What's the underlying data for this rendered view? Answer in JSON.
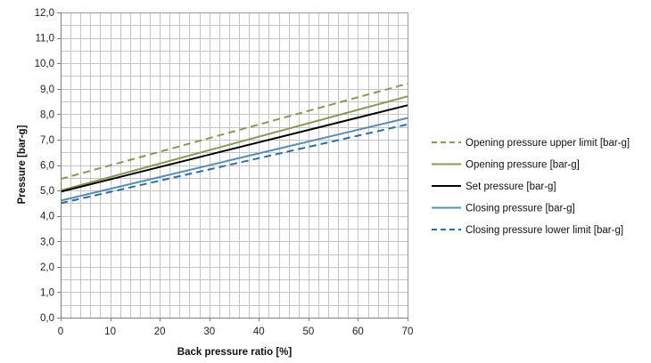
{
  "chart_data": {
    "type": "line",
    "xlabel": "Back pressure ratio [%]",
    "ylabel": "Pressure [bar-g]",
    "xlim": [
      0,
      70
    ],
    "ylim": [
      0,
      12
    ],
    "x_ticks": [
      "0",
      "10",
      "20",
      "30",
      "40",
      "50",
      "60",
      "70"
    ],
    "y_ticks": [
      "0,0",
      "1,0",
      "2,0",
      "3,0",
      "4,0",
      "5,0",
      "6,0",
      "7,0",
      "8,0",
      "9,0",
      "10,0",
      "11,0",
      "12,0"
    ],
    "x_tick_values": [
      0,
      10,
      20,
      30,
      40,
      50,
      60,
      70
    ],
    "y_tick_values": [
      0,
      1,
      2,
      3,
      4,
      5,
      6,
      7,
      8,
      9,
      10,
      11,
      12
    ],
    "x_minor_step": 2,
    "y_minor_step": 0.5,
    "grid": true,
    "legend_position": "right",
    "series": [
      {
        "name": "Opening pressure upper limit [bar-g]",
        "x": [
          0,
          70
        ],
        "y": [
          5.45,
          9.2
        ],
        "color": "#8b9659",
        "dash": "dashed"
      },
      {
        "name": "Opening pressure [bar-g]",
        "x": [
          0,
          70
        ],
        "y": [
          5.0,
          8.7
        ],
        "color": "#8b9659",
        "dash": "solid"
      },
      {
        "name": "Set pressure [bar-g]",
        "x": [
          0,
          70
        ],
        "y": [
          4.95,
          8.35
        ],
        "color": "#000000",
        "dash": "solid"
      },
      {
        "name": "Closing pressure [bar-g]",
        "x": [
          0,
          70
        ],
        "y": [
          4.6,
          7.85
        ],
        "color": "#5b8db0",
        "dash": "solid"
      },
      {
        "name": "Closing pressure lower limit [bar-g]",
        "x": [
          0,
          70
        ],
        "y": [
          4.5,
          7.6
        ],
        "color": "#2e6e9e",
        "dash": "dashed"
      }
    ]
  }
}
